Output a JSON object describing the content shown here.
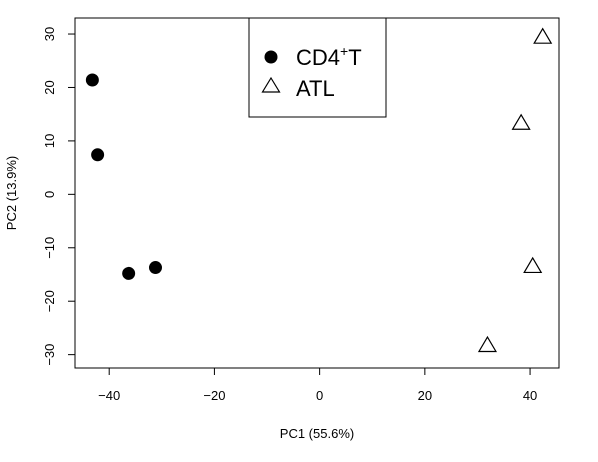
{
  "chart_data": {
    "type": "scatter",
    "xlabel": "PC1 (55.6%)",
    "ylabel": "PC2 (13.9%)",
    "xlim": [
      -46.5,
      45.5
    ],
    "ylim": [
      -32.5,
      33.0
    ],
    "xticks": [
      -40,
      -20,
      0,
      20,
      40
    ],
    "yticks": [
      -30,
      -20,
      -10,
      0,
      10,
      20,
      30
    ],
    "grid": false,
    "legend_position": "top-center",
    "series": [
      {
        "name": "CD4",
        "name_sup": "+",
        "name_suffix": "T",
        "marker": "filled-circle",
        "color": "#000000",
        "points": [
          {
            "x": -43.2,
            "y": 21.4
          },
          {
            "x": -42.2,
            "y": 7.4
          },
          {
            "x": -36.3,
            "y": -14.8
          },
          {
            "x": -31.2,
            "y": -13.7
          }
        ]
      },
      {
        "name": "ATL",
        "marker": "open-triangle",
        "color": "#000000",
        "points": [
          {
            "x": 42.4,
            "y": 29.4
          },
          {
            "x": 38.3,
            "y": 13.3
          },
          {
            "x": 40.5,
            "y": -13.5
          },
          {
            "x": 31.9,
            "y": -28.3
          }
        ]
      }
    ]
  }
}
